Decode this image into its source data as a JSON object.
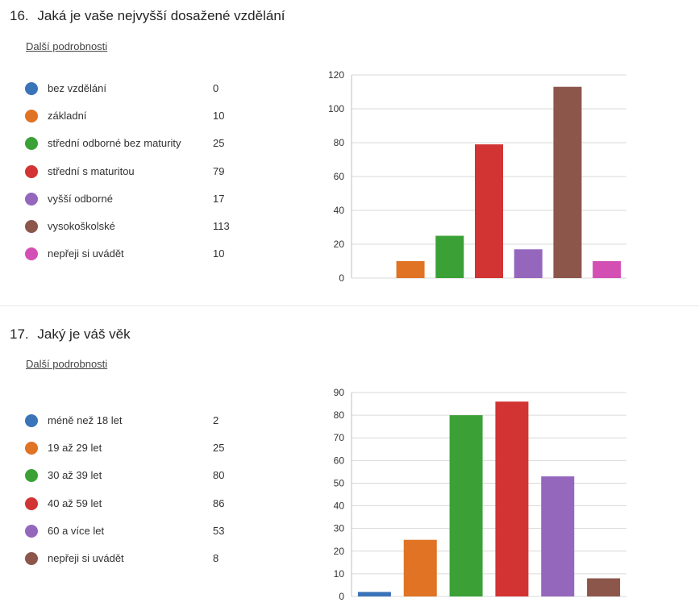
{
  "questions": [
    {
      "number": "16.",
      "title": "Jaká je vaše nejvyšší dosažené vzdělání",
      "details_link": "Další podrobnosti",
      "legend": [
        {
          "label": "bez vzdělání",
          "count": "0",
          "color": "#3b73b9"
        },
        {
          "label": "základní",
          "count": "10",
          "color": "#e07324"
        },
        {
          "label": "střední odborné bez maturity",
          "count": "25",
          "color": "#3ba137"
        },
        {
          "label": "střední s maturitou",
          "count": "79",
          "color": "#d13433"
        },
        {
          "label": "vyšší odborné",
          "count": "17",
          "color": "#9467bd"
        },
        {
          "label": "vysokoškolské",
          "count": "113",
          "color": "#8c564b"
        },
        {
          "label": "nepřeji si uvádět",
          "count": "10",
          "color": "#d44fb4"
        }
      ]
    },
    {
      "number": "17.",
      "title": "Jaký je váš věk",
      "details_link": "Další podrobnosti",
      "legend": [
        {
          "label": "méně než 18 let",
          "count": "2",
          "color": "#3b73b9"
        },
        {
          "label": "19 až 29 let",
          "count": "25",
          "color": "#e07324"
        },
        {
          "label": "30 až 39 let",
          "count": "80",
          "color": "#3ba137"
        },
        {
          "label": "40 až 59 let",
          "count": "86",
          "color": "#d13433"
        },
        {
          "label": "60 a více let",
          "count": "53",
          "color": "#9467bd"
        },
        {
          "label": "nepřeji si uvádět",
          "count": "8",
          "color": "#8c564b"
        }
      ]
    }
  ],
  "chart_data": [
    {
      "type": "bar",
      "categories": [
        "bez vzdělání",
        "základní",
        "střední odborné bez maturity",
        "střední s maturitou",
        "vyšší odborné",
        "vysokoškolské",
        "nepřeji si uvádět"
      ],
      "values": [
        0,
        10,
        25,
        79,
        17,
        113,
        10
      ],
      "colors": [
        "#3b73b9",
        "#e07324",
        "#3ba137",
        "#d13433",
        "#9467bd",
        "#8c564b",
        "#d44fb4"
      ],
      "yticks": [
        0,
        20,
        40,
        60,
        80,
        100,
        120
      ],
      "ylim": [
        0,
        120
      ],
      "grid": true,
      "title": "",
      "xlabel": "",
      "ylabel": ""
    },
    {
      "type": "bar",
      "categories": [
        "méně než 18 let",
        "19 až 29 let",
        "30 až 39 let",
        "40 až 59 let",
        "60 a více let",
        "nepřeji si uvádět"
      ],
      "values": [
        2,
        25,
        80,
        86,
        53,
        8
      ],
      "colors": [
        "#3b73b9",
        "#e07324",
        "#3ba137",
        "#d13433",
        "#9467bd",
        "#8c564b"
      ],
      "yticks": [
        0,
        10,
        20,
        30,
        40,
        50,
        60,
        70,
        80,
        90
      ],
      "ylim": [
        0,
        90
      ],
      "grid": true,
      "title": "",
      "xlabel": "",
      "ylabel": ""
    }
  ]
}
